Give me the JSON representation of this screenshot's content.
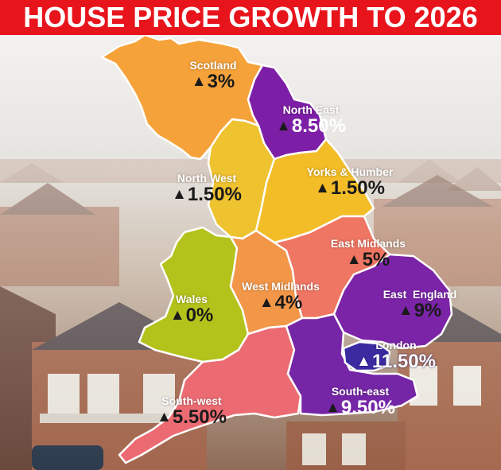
{
  "title": "HOUSE PRICE GROWTH TO 2026",
  "colors": {
    "title_bg": "#e8141c",
    "scotland": "#f6a23a",
    "north_east": "#7d1fa6",
    "north_west": "#efc230",
    "yorks_humber": "#f3bd28",
    "east_midlands": "#ef7663",
    "west_midlands": "#f29648",
    "wales": "#b4c21c",
    "east_england": "#7b24a8",
    "london": "#3b2ba0",
    "south_east": "#7526a6",
    "south_west": "#ec6b72"
  },
  "regions": [
    {
      "key": "scotland",
      "name": "Scotland",
      "growth": "3%"
    },
    {
      "key": "north_east",
      "name": "North East",
      "growth": "8.50%"
    },
    {
      "key": "north_west",
      "name": "North West",
      "growth": "1.50%"
    },
    {
      "key": "yorks_humber",
      "name": "Yorks & Humber",
      "growth": "1.50%"
    },
    {
      "key": "east_midlands",
      "name": "East Midlands",
      "growth": "5%"
    },
    {
      "key": "west_midlands",
      "name": "West Midlands",
      "growth": "4%"
    },
    {
      "key": "wales",
      "name": "Wales",
      "growth": "0%"
    },
    {
      "key": "east_england",
      "name": "East  England",
      "growth": "9%"
    },
    {
      "key": "london",
      "name": "London",
      "growth": "11.50%"
    },
    {
      "key": "south_east",
      "name": "South-east",
      "growth": "9.50%"
    },
    {
      "key": "south_west",
      "name": "South-west",
      "growth": "5.50%"
    }
  ]
}
